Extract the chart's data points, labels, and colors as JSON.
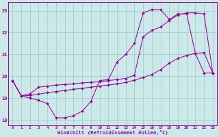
{
  "xlabel": "Windchill (Refroidissement éolien,°C)",
  "bg_color": "#cce8e8",
  "grid_color": "#99cccc",
  "line_color": "#990099",
  "xlim": [
    -0.5,
    23.5
  ],
  "ylim": [
    17.75,
    23.4
  ],
  "xticks": [
    0,
    1,
    2,
    3,
    4,
    5,
    6,
    7,
    8,
    9,
    10,
    11,
    12,
    13,
    14,
    15,
    16,
    17,
    18,
    19,
    20,
    21,
    22,
    23
  ],
  "yticks": [
    18,
    19,
    20,
    21,
    22,
    23
  ],
  "s1_x": [
    0,
    1,
    2,
    3,
    4,
    5,
    6,
    7,
    8,
    9,
    10,
    11,
    12,
    13,
    14,
    15,
    16,
    17,
    18,
    19,
    20,
    21,
    22,
    23
  ],
  "s1_y": [
    19.8,
    19.1,
    19.0,
    18.9,
    18.75,
    18.1,
    18.1,
    18.2,
    18.4,
    18.85,
    19.8,
    19.85,
    20.65,
    21.0,
    21.5,
    22.9,
    23.05,
    23.05,
    22.6,
    22.85,
    22.85,
    21.05,
    20.15,
    20.15
  ],
  "s2_x": [
    0,
    1,
    2,
    3,
    4,
    5,
    6,
    7,
    8,
    9,
    10,
    11,
    12,
    13,
    14,
    15,
    16,
    17,
    18,
    19,
    20,
    21,
    22,
    23
  ],
  "s2_y": [
    19.8,
    19.1,
    19.2,
    19.5,
    19.55,
    19.6,
    19.62,
    19.65,
    19.7,
    19.72,
    19.75,
    19.8,
    19.85,
    19.9,
    20.05,
    21.8,
    22.1,
    22.25,
    22.55,
    22.8,
    22.9,
    22.9,
    22.85,
    20.15
  ],
  "s3_x": [
    0,
    1,
    2,
    3,
    4,
    5,
    6,
    7,
    8,
    9,
    10,
    11,
    12,
    13,
    14,
    15,
    16,
    17,
    18,
    19,
    20,
    21,
    22,
    23
  ],
  "s3_y": [
    19.8,
    19.1,
    19.12,
    19.18,
    19.25,
    19.3,
    19.35,
    19.4,
    19.45,
    19.5,
    19.55,
    19.6,
    19.65,
    19.72,
    19.82,
    19.95,
    20.08,
    20.3,
    20.6,
    20.82,
    20.95,
    21.05,
    21.08,
    20.15
  ]
}
